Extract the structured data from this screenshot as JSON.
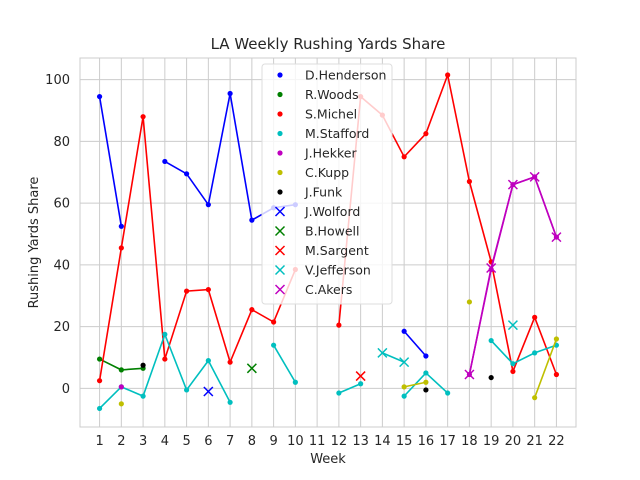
{
  "chart_data": {
    "type": "line",
    "title": "LA Weekly Rushing Yards Share",
    "xlabel": "Week",
    "ylabel": "Rushing Yards Share",
    "xlim": [
      0.1,
      22.9
    ],
    "ylim": [
      -12.5,
      107
    ],
    "xticks": [
      1,
      2,
      3,
      4,
      5,
      6,
      7,
      8,
      9,
      10,
      11,
      12,
      13,
      14,
      15,
      16,
      17,
      18,
      19,
      20,
      21,
      22
    ],
    "yticks": [
      0,
      20,
      40,
      60,
      80,
      100
    ],
    "grid": true,
    "legend_position": "top-center",
    "series": [
      {
        "name": "D.Henderson",
        "color": "#0000ff",
        "marker": "dot",
        "points": [
          [
            1,
            94.5
          ],
          [
            2,
            52.5
          ],
          [
            null,
            null
          ],
          [
            4,
            73.5
          ],
          [
            5,
            69.5
          ],
          [
            6,
            59.5
          ],
          [
            7,
            95.5
          ],
          [
            8,
            54.5
          ],
          [
            9,
            58.5
          ],
          [
            10,
            59.5
          ],
          [
            null,
            null
          ],
          [
            15,
            18.5
          ],
          [
            16,
            10.5
          ]
        ]
      },
      {
        "name": "R.Woods",
        "color": "#008000",
        "marker": "dot",
        "points": [
          [
            1,
            9.5
          ],
          [
            2,
            6
          ],
          [
            3,
            6.5
          ]
        ]
      },
      {
        "name": "S.Michel",
        "color": "#ff0000",
        "marker": "dot",
        "points": [
          [
            1,
            2.5
          ],
          [
            2,
            45.5
          ],
          [
            3,
            88
          ],
          [
            4,
            9.5
          ],
          [
            5,
            31.5
          ],
          [
            6,
            32
          ],
          [
            7,
            8.5
          ],
          [
            8,
            25.5
          ],
          [
            9,
            21.5
          ],
          [
            10,
            38.5
          ],
          [
            null,
            null
          ],
          [
            12,
            20.5
          ],
          [
            13,
            94.5
          ],
          [
            14,
            88.5
          ],
          [
            15,
            75
          ],
          [
            16,
            82.5
          ],
          [
            17,
            101.5
          ],
          [
            18,
            67
          ],
          [
            19,
            41
          ],
          [
            20,
            5.5
          ],
          [
            21,
            23
          ],
          [
            22,
            4.5
          ]
        ]
      },
      {
        "name": "M.Stafford",
        "color": "#00bfbf",
        "marker": "dot",
        "points": [
          [
            1,
            -6.5
          ],
          [
            2,
            0.5
          ],
          [
            3,
            -2.5
          ],
          [
            4,
            17.5
          ],
          [
            5,
            -0.5
          ],
          [
            6,
            9
          ],
          [
            7,
            -4.5
          ],
          [
            null,
            null
          ],
          [
            9,
            14
          ],
          [
            10,
            2
          ],
          [
            null,
            null
          ],
          [
            12,
            -1.5
          ],
          [
            13,
            1.5
          ],
          [
            null,
            null
          ],
          [
            15,
            -2.5
          ],
          [
            16,
            5
          ],
          [
            17,
            -1.5
          ],
          [
            null,
            null
          ],
          [
            19,
            15.5
          ],
          [
            20,
            8
          ],
          [
            21,
            11.5
          ],
          [
            22,
            14
          ]
        ]
      },
      {
        "name": "J.Hekker",
        "color": "#bf00bf",
        "marker": "dot",
        "points": [
          [
            2,
            0.5
          ],
          [
            null,
            null
          ],
          [
            18,
            4.5
          ],
          [
            19,
            38.5
          ],
          [
            20,
            66
          ],
          [
            21,
            68.5
          ],
          [
            22,
            49
          ]
        ]
      },
      {
        "name": "C.Kupp",
        "color": "#bfbf00",
        "marker": "dot",
        "points": [
          [
            2,
            -5
          ],
          [
            null,
            null
          ],
          [
            15,
            0.5
          ],
          [
            16,
            2
          ],
          [
            null,
            null
          ],
          [
            18,
            28
          ],
          [
            null,
            null
          ],
          [
            21,
            -3
          ],
          [
            22,
            16
          ]
        ]
      },
      {
        "name": "J.Funk",
        "color": "#000000",
        "marker": "dot",
        "points": [
          [
            3,
            7.5
          ],
          [
            null,
            null
          ],
          [
            16,
            -0.5
          ],
          [
            null,
            null
          ],
          [
            19,
            3.5
          ]
        ]
      },
      {
        "name": "J.Wolford",
        "color": "#0000ff",
        "marker": "x",
        "points": [
          [
            6,
            -1
          ]
        ]
      },
      {
        "name": "B.Howell",
        "color": "#008000",
        "marker": "x",
        "points": [
          [
            8,
            6.5
          ]
        ]
      },
      {
        "name": "M.Sargent",
        "color": "#ff0000",
        "marker": "x",
        "points": [
          [
            13,
            4
          ]
        ]
      },
      {
        "name": "V.Jefferson",
        "color": "#00bfbf",
        "marker": "x",
        "points": [
          [
            14,
            11.5
          ],
          [
            15,
            8.5
          ],
          [
            null,
            null
          ],
          [
            20,
            20.5
          ]
        ]
      },
      {
        "name": "C.Akers",
        "color": "#bf00bf",
        "marker": "x",
        "points": [
          [
            18,
            4.5
          ],
          [
            19,
            39
          ],
          [
            20,
            66
          ],
          [
            21,
            68.5
          ],
          [
            22,
            49
          ]
        ]
      }
    ]
  }
}
